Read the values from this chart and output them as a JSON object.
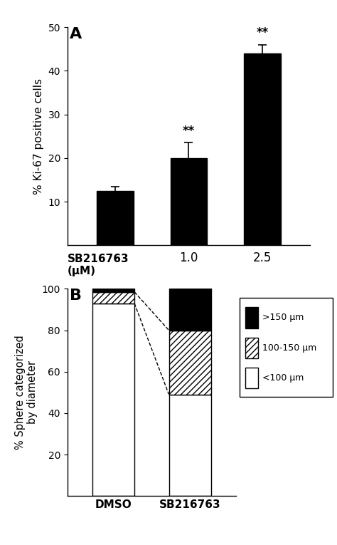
{
  "panel_A": {
    "bar_values": [
      12.5,
      20.0,
      44.0
    ],
    "bar_errors": [
      1.0,
      3.5,
      2.0
    ],
    "bar_tick_labels": [
      "-",
      "1.0",
      "2.5"
    ],
    "bar_color": "#000000",
    "ylabel": "% Ki-67 positive cells",
    "xlabel_line1": "SB216763",
    "xlabel_line2": "(μM)",
    "ylim": [
      0,
      50
    ],
    "yticks": [
      10,
      20,
      30,
      40,
      50
    ],
    "significance": [
      "none",
      "**",
      "**"
    ],
    "panel_label": "A"
  },
  "panel_B": {
    "categories": [
      "DMSO",
      "SB216763"
    ],
    "less100": [
      93.0,
      49.0
    ],
    "mid": [
      5.5,
      31.0
    ],
    "more150": [
      1.5,
      20.0
    ],
    "ylabel": "% Sphere categorized\nby diameter",
    "ylim": [
      0,
      100
    ],
    "yticks": [
      20,
      40,
      60,
      80,
      100
    ],
    "legend_labels": [
      ">150 μm",
      "100-150 μm",
      "<100 μm"
    ],
    "panel_label": "B"
  },
  "figure_bg": "#ffffff",
  "bar_width": 0.5
}
